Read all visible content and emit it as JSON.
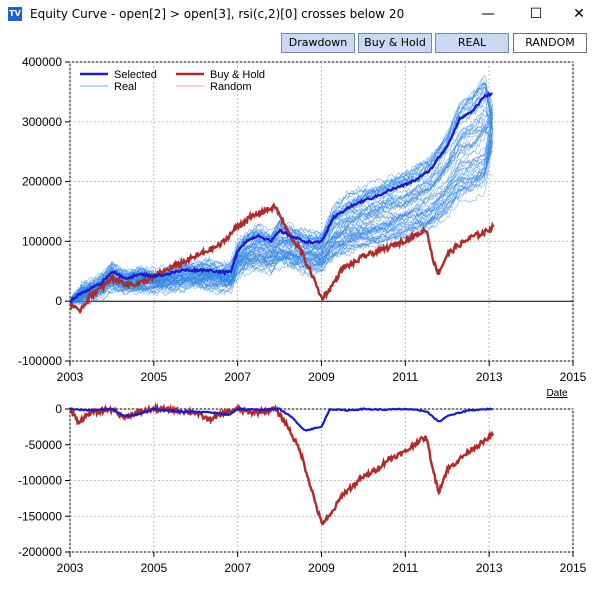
{
  "window": {
    "icon_label": "TV",
    "title": "Equity Curve - open[2] > open[3], rsi(c,2)[0] crosses below 20",
    "minimize_glyph": "—",
    "maximize_glyph": "☐",
    "close_glyph": "✕"
  },
  "toolbar": {
    "drawdown_label": "Drawdown",
    "buy_hold_label": "Buy & Hold",
    "real_label": "REAL",
    "random_label": "RANDOM"
  },
  "colors": {
    "selected": "#1a1ad2",
    "buy_hold": "#b02a2a",
    "real": "#2d86e8",
    "random": "#e8a0a0"
  },
  "chart_data": [
    {
      "type": "line",
      "title": "",
      "xlabel": "Date",
      "ylabel": "",
      "xlim": [
        2003,
        2015
      ],
      "ylim": [
        -100000,
        400000
      ],
      "x_ticks": [
        "2003",
        "2005",
        "2007",
        "2009",
        "2011",
        "2013",
        "2015"
      ],
      "y_ticks": [
        "400000",
        "300000",
        "200000",
        "100000",
        "0",
        "-100000"
      ],
      "grid": true,
      "legend_position": "top-left",
      "legend": [
        "Selected",
        "Buy & Hold",
        "Real",
        "Random"
      ],
      "series": [
        {
          "name": "Selected",
          "x": [
            2003.0,
            2003.3,
            2003.7,
            2004.0,
            2004.3,
            2004.7,
            2005.0,
            2005.3,
            2005.7,
            2006.0,
            2006.3,
            2006.7,
            2006.85,
            2007.0,
            2007.2,
            2007.5,
            2007.8,
            2008.0,
            2008.3,
            2008.6,
            2008.9,
            2009.0,
            2009.3,
            2009.6,
            2010.0,
            2010.3,
            2010.6,
            2011.0,
            2011.3,
            2011.6,
            2012.0,
            2012.3,
            2012.6,
            2012.9,
            2013.1
          ],
          "y": [
            0,
            15000,
            28000,
            50000,
            38000,
            45000,
            42000,
            45000,
            52000,
            52000,
            52000,
            48000,
            50000,
            85000,
            100000,
            110000,
            100000,
            118000,
            108000,
            100000,
            98000,
            100000,
            140000,
            155000,
            168000,
            175000,
            185000,
            195000,
            205000,
            220000,
            260000,
            305000,
            318000,
            343000,
            348000
          ]
        },
        {
          "name": "Buy & Hold",
          "x": [
            2003.0,
            2003.2,
            2003.5,
            2003.8,
            2004.0,
            2004.3,
            2004.6,
            2005.0,
            2005.3,
            2005.6,
            2006.0,
            2006.3,
            2006.6,
            2007.0,
            2007.3,
            2007.6,
            2007.9,
            2008.2,
            2008.5,
            2008.8,
            2009.0,
            2009.2,
            2009.5,
            2009.8,
            2010.0,
            2010.3,
            2010.6,
            2011.0,
            2011.3,
            2011.5,
            2011.7,
            2011.8,
            2012.0,
            2012.3,
            2012.6,
            2012.9,
            2013.1
          ],
          "y": [
            -2000,
            -18000,
            10000,
            25000,
            38000,
            30000,
            28000,
            40000,
            52000,
            62000,
            75000,
            85000,
            95000,
            125000,
            140000,
            150000,
            158000,
            115000,
            85000,
            40000,
            5000,
            20000,
            55000,
            65000,
            75000,
            82000,
            90000,
            102000,
            112000,
            120000,
            60000,
            48000,
            78000,
            95000,
            108000,
            115000,
            125000
          ]
        }
      ]
    },
    {
      "type": "line",
      "title": "",
      "xlabel": "",
      "ylabel": "",
      "xlim": [
        2003,
        2015
      ],
      "ylim": [
        -200000,
        0
      ],
      "x_ticks": [
        "2003",
        "2005",
        "2007",
        "2009",
        "2011",
        "2013",
        "2015"
      ],
      "y_ticks": [
        "0",
        "-50000",
        "-100000",
        "-150000",
        "-200000"
      ],
      "grid": true,
      "series": [
        {
          "name": "Selected",
          "x": [
            2003.0,
            2003.5,
            2004.0,
            2004.3,
            2004.6,
            2005.0,
            2005.5,
            2006.0,
            2006.4,
            2006.8,
            2007.0,
            2007.5,
            2008.0,
            2008.3,
            2008.6,
            2009.0,
            2009.2,
            2009.6,
            2010.0,
            2010.5,
            2011.0,
            2011.5,
            2011.8,
            2012.0,
            2012.5,
            2013.0,
            2013.1
          ],
          "y": [
            0,
            -2000,
            0,
            -10000,
            -8000,
            0,
            -3000,
            -4000,
            -5000,
            -8000,
            0,
            -1000,
            0,
            -12000,
            -30000,
            -25000,
            0,
            -2000,
            0,
            -1000,
            0,
            -3000,
            -18000,
            -10000,
            -2000,
            0,
            0
          ]
        },
        {
          "name": "Buy & Hold",
          "x": [
            2003.0,
            2003.2,
            2003.5,
            2004.0,
            2004.3,
            2004.6,
            2005.0,
            2005.5,
            2006.0,
            2006.3,
            2006.6,
            2007.0,
            2007.3,
            2007.6,
            2007.9,
            2008.2,
            2008.5,
            2008.8,
            2009.0,
            2009.2,
            2009.5,
            2009.8,
            2010.0,
            2010.3,
            2010.6,
            2011.0,
            2011.3,
            2011.5,
            2011.7,
            2011.8,
            2012.0,
            2012.3,
            2012.6,
            2012.9,
            2013.1
          ],
          "y": [
            0,
            -18000,
            -5000,
            0,
            -12000,
            -5000,
            0,
            -2000,
            -5000,
            -15000,
            -8000,
            0,
            -5000,
            -3000,
            0,
            -25000,
            -60000,
            -120000,
            -160000,
            -150000,
            -120000,
            -105000,
            -95000,
            -85000,
            -70000,
            -60000,
            -45000,
            -40000,
            -95000,
            -115000,
            -85000,
            -70000,
            -55000,
            -45000,
            -35000
          ]
        }
      ]
    }
  ]
}
